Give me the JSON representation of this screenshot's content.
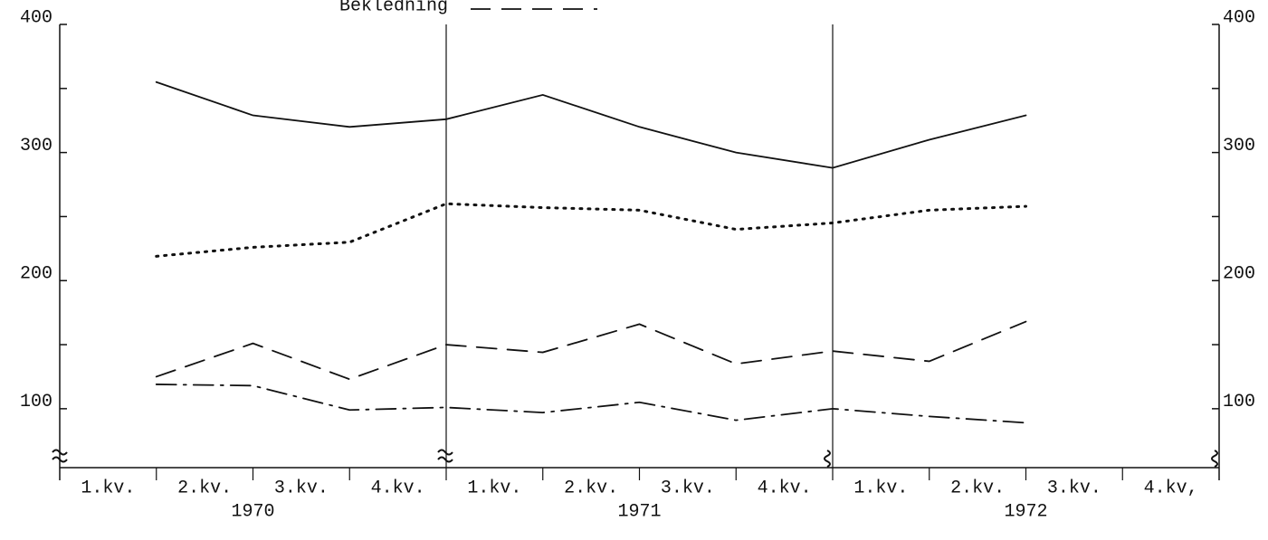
{
  "chart_data": {
    "type": "line",
    "legend_text": "Bekledning",
    "categories": [
      "1.kv.",
      "2.kv.",
      "3.kv.",
      "4.kv.",
      "1.kv.",
      "2.kv.",
      "3.kv.",
      "4.kv.",
      "1.kv.",
      "2.kv.",
      "3.kv.",
      "4.kv,"
    ],
    "groups": [
      "1970",
      "1971",
      "1972"
    ],
    "series": [
      {
        "style": "solid",
        "color": "#111111",
        "values": [
          355,
          329,
          320,
          326,
          345,
          320,
          300,
          288,
          310,
          329,
          null,
          null
        ]
      },
      {
        "style": "dotted",
        "color": "#111111",
        "values": [
          219,
          226,
          230,
          260,
          257,
          255,
          240,
          245,
          255,
          258,
          null,
          null
        ]
      },
      {
        "name": "Bekledning",
        "style": "dashed",
        "color": "#111111",
        "values": [
          125,
          151,
          123,
          150,
          144,
          166,
          135,
          145,
          137,
          168,
          null,
          null
        ]
      },
      {
        "style": "dashdot",
        "color": "#111111",
        "values": [
          119,
          118,
          99,
          101,
          97,
          105,
          91,
          100,
          94,
          89,
          null,
          null
        ]
      }
    ],
    "ylim": [
      54,
      400
    ],
    "yticks": [
      100,
      200,
      300,
      400
    ],
    "yminorticks": [
      150,
      250,
      350
    ],
    "y2lim": [
      54,
      400
    ],
    "y2ticks": [
      100,
      200,
      300,
      400
    ]
  }
}
